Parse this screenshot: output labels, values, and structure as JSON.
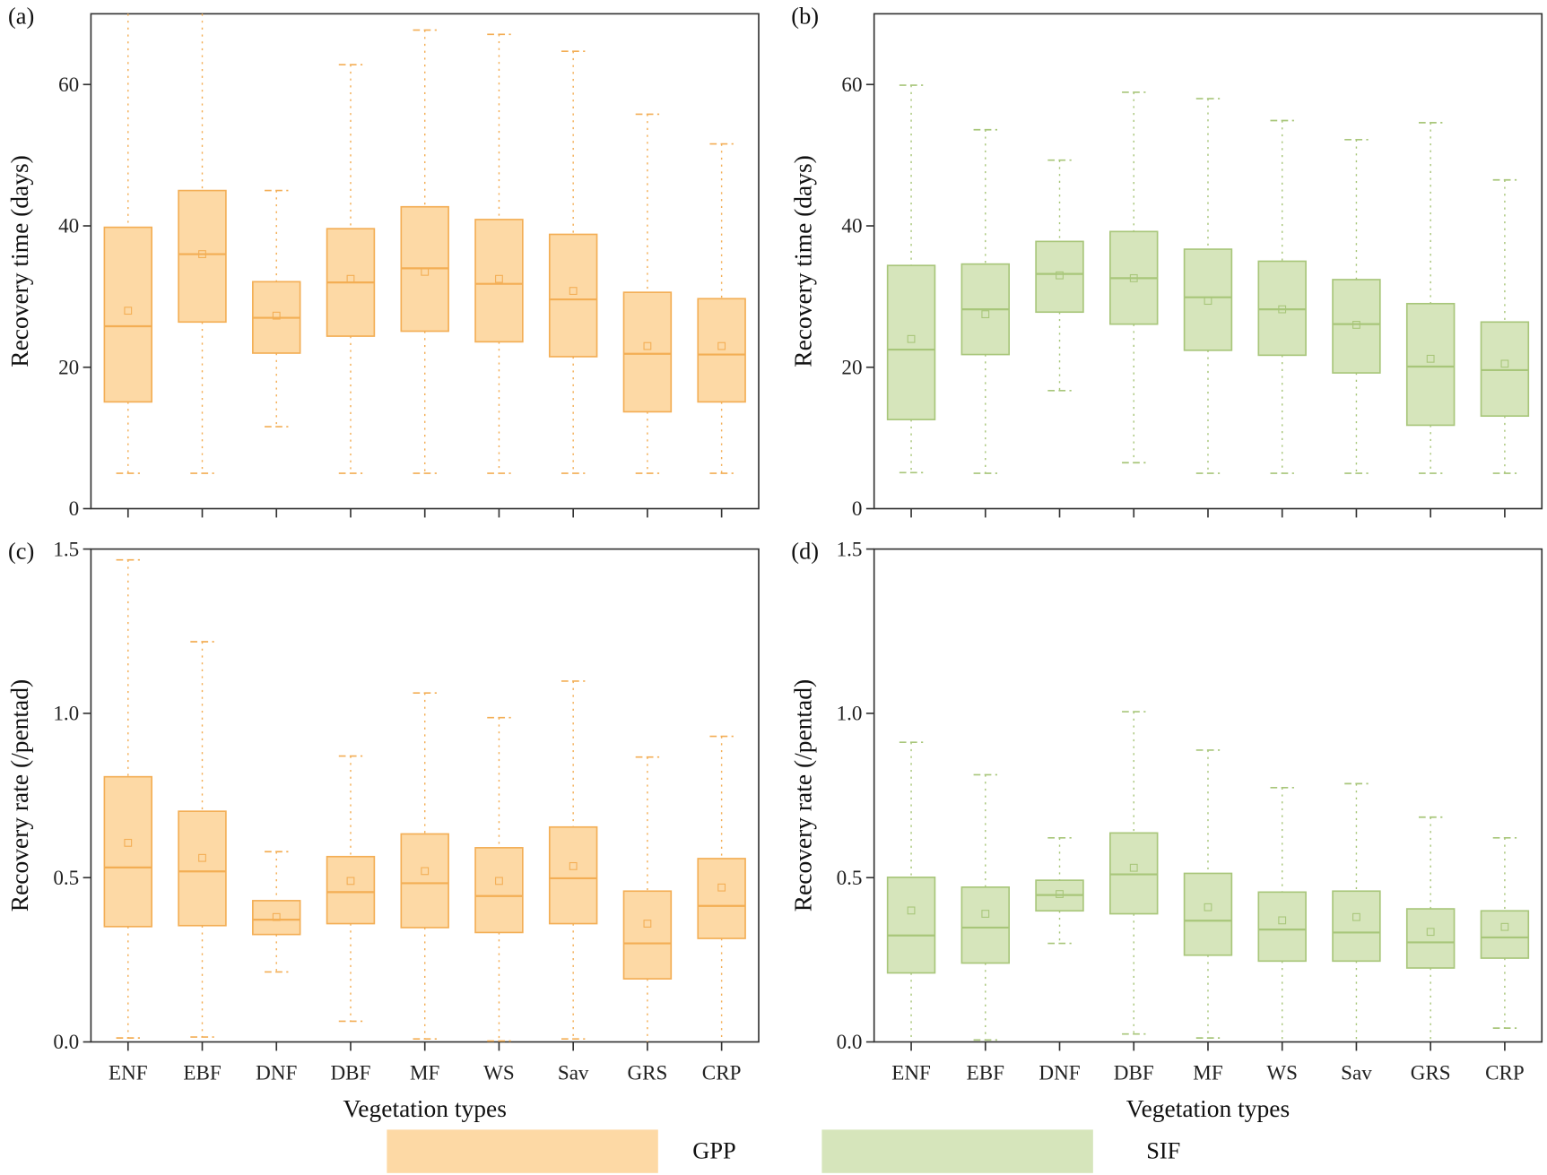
{
  "chart_data": [
    {
      "type": "box",
      "panel_label": "(a)",
      "ylabel": "Recovery time (days)",
      "xlabel": "",
      "ylim": [
        0,
        70
      ],
      "yticks": [
        "0",
        "20",
        "40",
        "60"
      ],
      "series": "GPP",
      "color": {
        "fill": "#fdd9a5",
        "stroke": "#f3ae55"
      },
      "categories": [
        "ENF",
        "EBF",
        "DNF",
        "DBF",
        "MF",
        "WS",
        "Sav",
        "GRS",
        "CRP"
      ],
      "boxes": [
        {
          "min": 5,
          "q1": 15.1,
          "median": 25.8,
          "q3": 39.8,
          "max": 70,
          "mean": 28
        },
        {
          "min": 5,
          "q1": 26.4,
          "median": 36,
          "q3": 45,
          "max": 70,
          "mean": 36
        },
        {
          "min": 11.6,
          "q1": 22,
          "median": 27,
          "q3": 32.1,
          "max": 45,
          "mean": 27.3
        },
        {
          "min": 5,
          "q1": 24.4,
          "median": 32,
          "q3": 39.6,
          "max": 62.8,
          "mean": 32.5
        },
        {
          "min": 5,
          "q1": 25.1,
          "median": 34,
          "q3": 42.7,
          "max": 67.7,
          "mean": 33.5
        },
        {
          "min": 5,
          "q1": 23.6,
          "median": 31.8,
          "q3": 40.9,
          "max": 67.1,
          "mean": 32.5
        },
        {
          "min": 5,
          "q1": 21.5,
          "median": 29.6,
          "q3": 38.8,
          "max": 64.7,
          "mean": 30.8
        },
        {
          "min": 5,
          "q1": 13.7,
          "median": 21.9,
          "q3": 30.6,
          "max": 55.8,
          "mean": 23
        },
        {
          "min": 5,
          "q1": 15.1,
          "median": 21.8,
          "q3": 29.7,
          "max": 51.6,
          "mean": 23
        }
      ]
    },
    {
      "type": "box",
      "panel_label": "(b)",
      "ylabel": "Recovery time (days)",
      "xlabel": "",
      "ylim": [
        0,
        70
      ],
      "yticks": [
        "0",
        "20",
        "40",
        "60"
      ],
      "series": "SIF",
      "color": {
        "fill": "#d6e5bb",
        "stroke": "#a8c67a"
      },
      "categories": [
        "ENF",
        "EBF",
        "DNF",
        "DBF",
        "MF",
        "WS",
        "Sav",
        "GRS",
        "CRP"
      ],
      "boxes": [
        {
          "min": 5.1,
          "q1": 12.6,
          "median": 22.5,
          "q3": 34.4,
          "max": 59.9,
          "mean": 24
        },
        {
          "min": 5,
          "q1": 21.8,
          "median": 28.2,
          "q3": 34.6,
          "max": 53.6,
          "mean": 27.5
        },
        {
          "min": 16.7,
          "q1": 27.8,
          "median": 33.2,
          "q3": 37.8,
          "max": 49.3,
          "mean": 33
        },
        {
          "min": 6.5,
          "q1": 26.1,
          "median": 32.6,
          "q3": 39.2,
          "max": 58.9,
          "mean": 32.6
        },
        {
          "min": 5,
          "q1": 22.4,
          "median": 29.9,
          "q3": 36.7,
          "max": 58,
          "mean": 29.4
        },
        {
          "min": 5,
          "q1": 21.7,
          "median": 28.2,
          "q3": 35,
          "max": 54.9,
          "mean": 28.2
        },
        {
          "min": 5,
          "q1": 19.2,
          "median": 26.1,
          "q3": 32.4,
          "max": 52.2,
          "mean": 26
        },
        {
          "min": 5,
          "q1": 11.8,
          "median": 20.1,
          "q3": 29,
          "max": 54.6,
          "mean": 21.2
        },
        {
          "min": 5,
          "q1": 13.1,
          "median": 19.6,
          "q3": 26.4,
          "max": 46.5,
          "mean": 20.5
        }
      ]
    },
    {
      "type": "box",
      "panel_label": "(c)",
      "ylabel": "Recovery rate (/pentad)",
      "xlabel": "Vegetation types",
      "ylim": [
        0,
        1.5
      ],
      "yticks": [
        "0.0",
        "0.5",
        "1.0",
        "1.5"
      ],
      "series": "GPP",
      "color": {
        "fill": "#fdd9a5",
        "stroke": "#f3ae55"
      },
      "categories": [
        "ENF",
        "EBF",
        "DNF",
        "DBF",
        "MF",
        "WS",
        "Sav",
        "GRS",
        "CRP"
      ],
      "boxes": [
        {
          "min": 0.012,
          "q1": 0.351,
          "median": 0.531,
          "q3": 0.807,
          "max": 1.467,
          "mean": 0.606
        },
        {
          "min": 0.015,
          "q1": 0.354,
          "median": 0.519,
          "q3": 0.702,
          "max": 1.218,
          "mean": 0.56
        },
        {
          "min": 0.213,
          "q1": 0.327,
          "median": 0.372,
          "q3": 0.43,
          "max": 0.579,
          "mean": 0.38
        },
        {
          "min": 0.063,
          "q1": 0.36,
          "median": 0.456,
          "q3": 0.564,
          "max": 0.87,
          "mean": 0.49
        },
        {
          "min": 0.009,
          "q1": 0.348,
          "median": 0.483,
          "q3": 0.633,
          "max": 1.062,
          "mean": 0.52
        },
        {
          "min": 0.003,
          "q1": 0.333,
          "median": 0.444,
          "q3": 0.591,
          "max": 0.987,
          "mean": 0.49
        },
        {
          "min": 0.009,
          "q1": 0.36,
          "median": 0.498,
          "q3": 0.654,
          "max": 1.098,
          "mean": 0.535
        },
        {
          "min": 0,
          "q1": 0.192,
          "median": 0.3,
          "q3": 0.459,
          "max": 0.867,
          "mean": 0.36
        },
        {
          "min": 0,
          "q1": 0.315,
          "median": 0.414,
          "q3": 0.558,
          "max": 0.93,
          "mean": 0.47
        }
      ]
    },
    {
      "type": "box",
      "panel_label": "(d)",
      "ylabel": "Recovery rate (/pentad)",
      "xlabel": "Vegetation types",
      "ylim": [
        0,
        1.5
      ],
      "yticks": [
        "0.0",
        "0.5",
        "1.0",
        "1.5"
      ],
      "series": "SIF",
      "color": {
        "fill": "#d6e5bb",
        "stroke": "#a8c67a"
      },
      "categories": [
        "ENF",
        "EBF",
        "DNF",
        "DBF",
        "MF",
        "WS",
        "Sav",
        "GRS",
        "CRP"
      ],
      "boxes": [
        {
          "min": 0,
          "q1": 0.21,
          "median": 0.324,
          "q3": 0.501,
          "max": 0.912,
          "mean": 0.4
        },
        {
          "min": 0.006,
          "q1": 0.24,
          "median": 0.348,
          "q3": 0.471,
          "max": 0.813,
          "mean": 0.39
        },
        {
          "min": 0.3,
          "q1": 0.399,
          "median": 0.447,
          "q3": 0.492,
          "max": 0.621,
          "mean": 0.45
        },
        {
          "min": 0.024,
          "q1": 0.39,
          "median": 0.51,
          "q3": 0.636,
          "max": 1.005,
          "mean": 0.53
        },
        {
          "min": 0.012,
          "q1": 0.264,
          "median": 0.369,
          "q3": 0.513,
          "max": 0.888,
          "mean": 0.41
        },
        {
          "min": 0,
          "q1": 0.246,
          "median": 0.342,
          "q3": 0.456,
          "max": 0.774,
          "mean": 0.37
        },
        {
          "min": 0,
          "q1": 0.246,
          "median": 0.333,
          "q3": 0.459,
          "max": 0.786,
          "mean": 0.38
        },
        {
          "min": 0,
          "q1": 0.225,
          "median": 0.303,
          "q3": 0.405,
          "max": 0.684,
          "mean": 0.335
        },
        {
          "min": 0.042,
          "q1": 0.255,
          "median": 0.318,
          "q3": 0.399,
          "max": 0.621,
          "mean": 0.35
        }
      ]
    }
  ],
  "legend": [
    {
      "label": "GPP",
      "color": "#fdd9a5"
    },
    {
      "label": "SIF",
      "color": "#d6e5bb"
    }
  ]
}
